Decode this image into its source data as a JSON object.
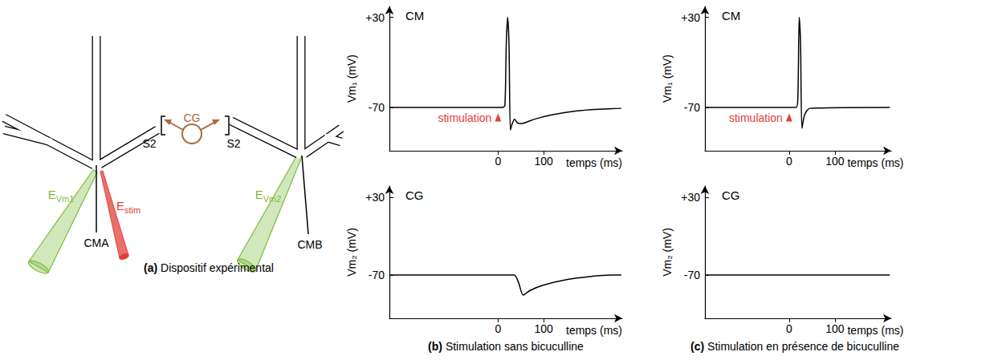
{
  "diagram": {
    "caption_letter": "(a)",
    "caption": "Dispositif expérimental",
    "neurons": [
      "CMA",
      "CMB"
    ],
    "interneuron": {
      "label": "CG",
      "color": "#a86b3c"
    },
    "synapse_labels": [
      "S2",
      "S2"
    ],
    "electrodes": [
      {
        "main": "E",
        "sub": "Vm1",
        "color": "#7dbb3c"
      },
      {
        "main": "E",
        "sub": "stim",
        "color": "#e2403a"
      },
      {
        "main": "E",
        "sub": "Vm2",
        "color": "#7dbb3c"
      }
    ]
  },
  "panels": [
    {
      "letter": "(b)",
      "caption": "Stimulation sans bicuculline"
    },
    {
      "letter": "(c)",
      "caption": "Stimulation en présence de bicuculline"
    }
  ],
  "chart_data": [
    {
      "type": "line",
      "title": "CM",
      "x_label": "temps (ms)",
      "y_label": "Vm₁ (mV)",
      "x": [
        -238,
        10,
        15,
        18,
        21,
        24,
        27,
        31,
        36,
        42,
        50,
        80,
        120,
        170,
        220,
        270
      ],
      "values": [
        -70,
        -70,
        -68,
        0,
        30,
        0,
        -95,
        -88,
        -83,
        -87,
        -88,
        -83,
        -78,
        -74,
        -72,
        -71
      ],
      "color": "#000000",
      "xlim": [
        -238,
        272
      ],
      "ylim": [
        -118,
        42
      ],
      "xticks": [
        0,
        100
      ],
      "yticks": [
        {
          "value": 30,
          "label": "+30"
        },
        -70
      ],
      "grid": false,
      "annotation": {
        "text": "stimulation",
        "x": 0,
        "color": "#e2403a"
      }
    },
    {
      "type": "line",
      "title": "CG",
      "x_label": "temps (ms)",
      "y_label": "Vm₂ (mV)",
      "x": [
        -238,
        35,
        45,
        55,
        70,
        100,
        150,
        200,
        250,
        270
      ],
      "values": [
        -70,
        -70,
        -80,
        -96,
        -90,
        -83,
        -76,
        -72,
        -70,
        -70
      ],
      "color": "#000000",
      "xlim": [
        -238,
        272
      ],
      "ylim": [
        -126,
        45
      ],
      "xticks": [
        0,
        100
      ],
      "yticks": [
        {
          "value": 30,
          "label": "+30"
        },
        -70
      ],
      "grid": false
    },
    {
      "type": "line",
      "title": "CM",
      "x_label": "temps (ms)",
      "y_label": "Vm₁ (mV)",
      "x": [
        -184,
        15,
        19,
        22,
        25,
        28,
        34,
        45,
        220
      ],
      "values": [
        -70,
        -70,
        -60,
        30,
        0,
        -93,
        -78,
        -71,
        -70
      ],
      "color": "#000000",
      "xlim": [
        -184,
        223
      ],
      "ylim": [
        -118,
        42
      ],
      "xticks": [
        0,
        100
      ],
      "yticks": [
        {
          "value": 30,
          "label": "+30"
        },
        -70
      ],
      "grid": false,
      "annotation": {
        "text": "stimulation",
        "x": 0,
        "color": "#e2403a"
      }
    },
    {
      "type": "line",
      "title": "CG",
      "x_label": "temps (ms)",
      "y_label": "Vm₂ (mV)",
      "x": [
        -184,
        220
      ],
      "values": [
        -70,
        -70
      ],
      "color": "#000000",
      "xlim": [
        -184,
        223
      ],
      "ylim": [
        -126,
        45
      ],
      "xticks": [
        0,
        100
      ],
      "yticks": [
        {
          "value": 30,
          "label": "+30"
        },
        -70
      ],
      "grid": false
    }
  ]
}
